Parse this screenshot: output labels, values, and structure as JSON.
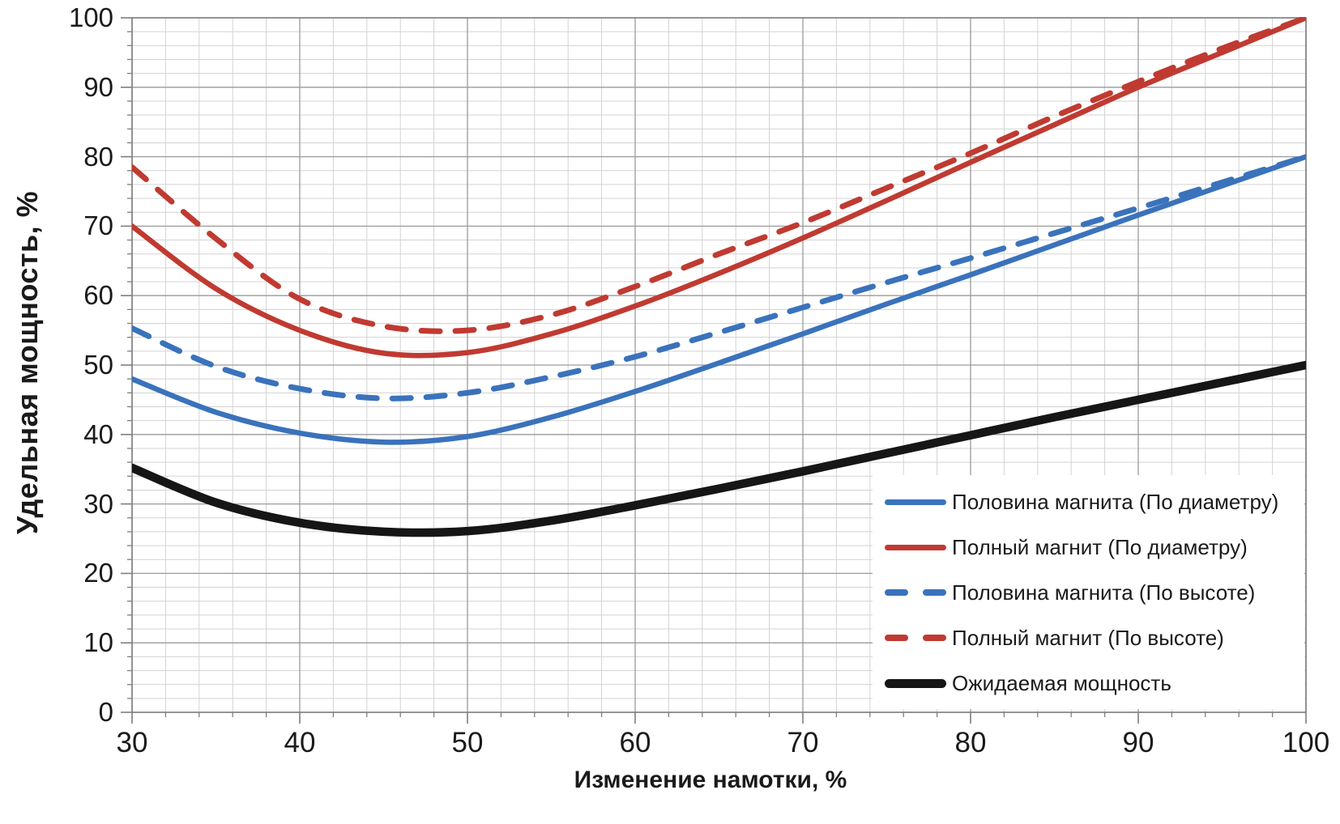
{
  "chart_data": {
    "type": "line",
    "title": "",
    "xlabel": "Изменение намотки, %",
    "ylabel": "Удельная мощность, %",
    "xlim": [
      30,
      100
    ],
    "ylim": [
      0,
      100
    ],
    "x_ticks": [
      30,
      40,
      50,
      60,
      70,
      80,
      90,
      100
    ],
    "y_ticks": [
      0,
      10,
      20,
      30,
      40,
      50,
      60,
      70,
      80,
      90,
      100
    ],
    "minor_grid_step": 2,
    "grid": "major and minor gridlines, both axes",
    "legend_position": "inside lower-right, opaque white background, no border",
    "axis_color": "#7f7f7f",
    "grid_major_color": "#9a9a9a",
    "grid_minor_color": "#d3d3d3",
    "text_color": "#1a1a1a",
    "x": [
      30,
      35,
      40,
      45,
      50,
      55,
      60,
      65,
      70,
      75,
      80,
      85,
      90,
      95,
      100
    ],
    "series": [
      {
        "name": "Половина магнита (По диаметру)",
        "color": "#3a72bc",
        "style": "solid",
        "width": 6.5,
        "values": [
          48,
          43.2,
          40.2,
          38.9,
          39.7,
          42.5,
          46.2,
          50.3,
          54.5,
          58.8,
          63,
          67.3,
          71.6,
          75.8,
          80
        ]
      },
      {
        "name": "Полный магнит (По диаметру)",
        "color": "#c03a31",
        "style": "solid",
        "width": 6.5,
        "values": [
          70,
          61,
          55,
          51.7,
          51.8,
          54.5,
          58.5,
          63.2,
          68.3,
          73.7,
          79.2,
          84.6,
          90,
          95,
          100
        ]
      },
      {
        "name": "Половина магнита (По высоте)",
        "color": "#3a72bc",
        "style": "dashed",
        "width": 7,
        "values": [
          55.3,
          49.8,
          46.6,
          45.2,
          46,
          48.3,
          51.2,
          54.7,
          58.3,
          61.9,
          65.4,
          69,
          72.6,
          76.3,
          80
        ]
      },
      {
        "name": "Полный магнит (По высоте)",
        "color": "#c03a31",
        "style": "dashed",
        "width": 7,
        "values": [
          78.5,
          68.2,
          59.5,
          55.6,
          55,
          57.2,
          61.3,
          66,
          70.5,
          75.5,
          80.5,
          85.8,
          90.8,
          95.6,
          100
        ]
      },
      {
        "name": "Ожидаемая мощность",
        "color": "#161616",
        "style": "solid",
        "width": 10.5,
        "values": [
          35.2,
          30.2,
          27.3,
          26,
          26.1,
          27.6,
          29.8,
          32.2,
          34.7,
          37.3,
          39.9,
          42.5,
          45,
          47.5,
          50
        ]
      }
    ]
  }
}
